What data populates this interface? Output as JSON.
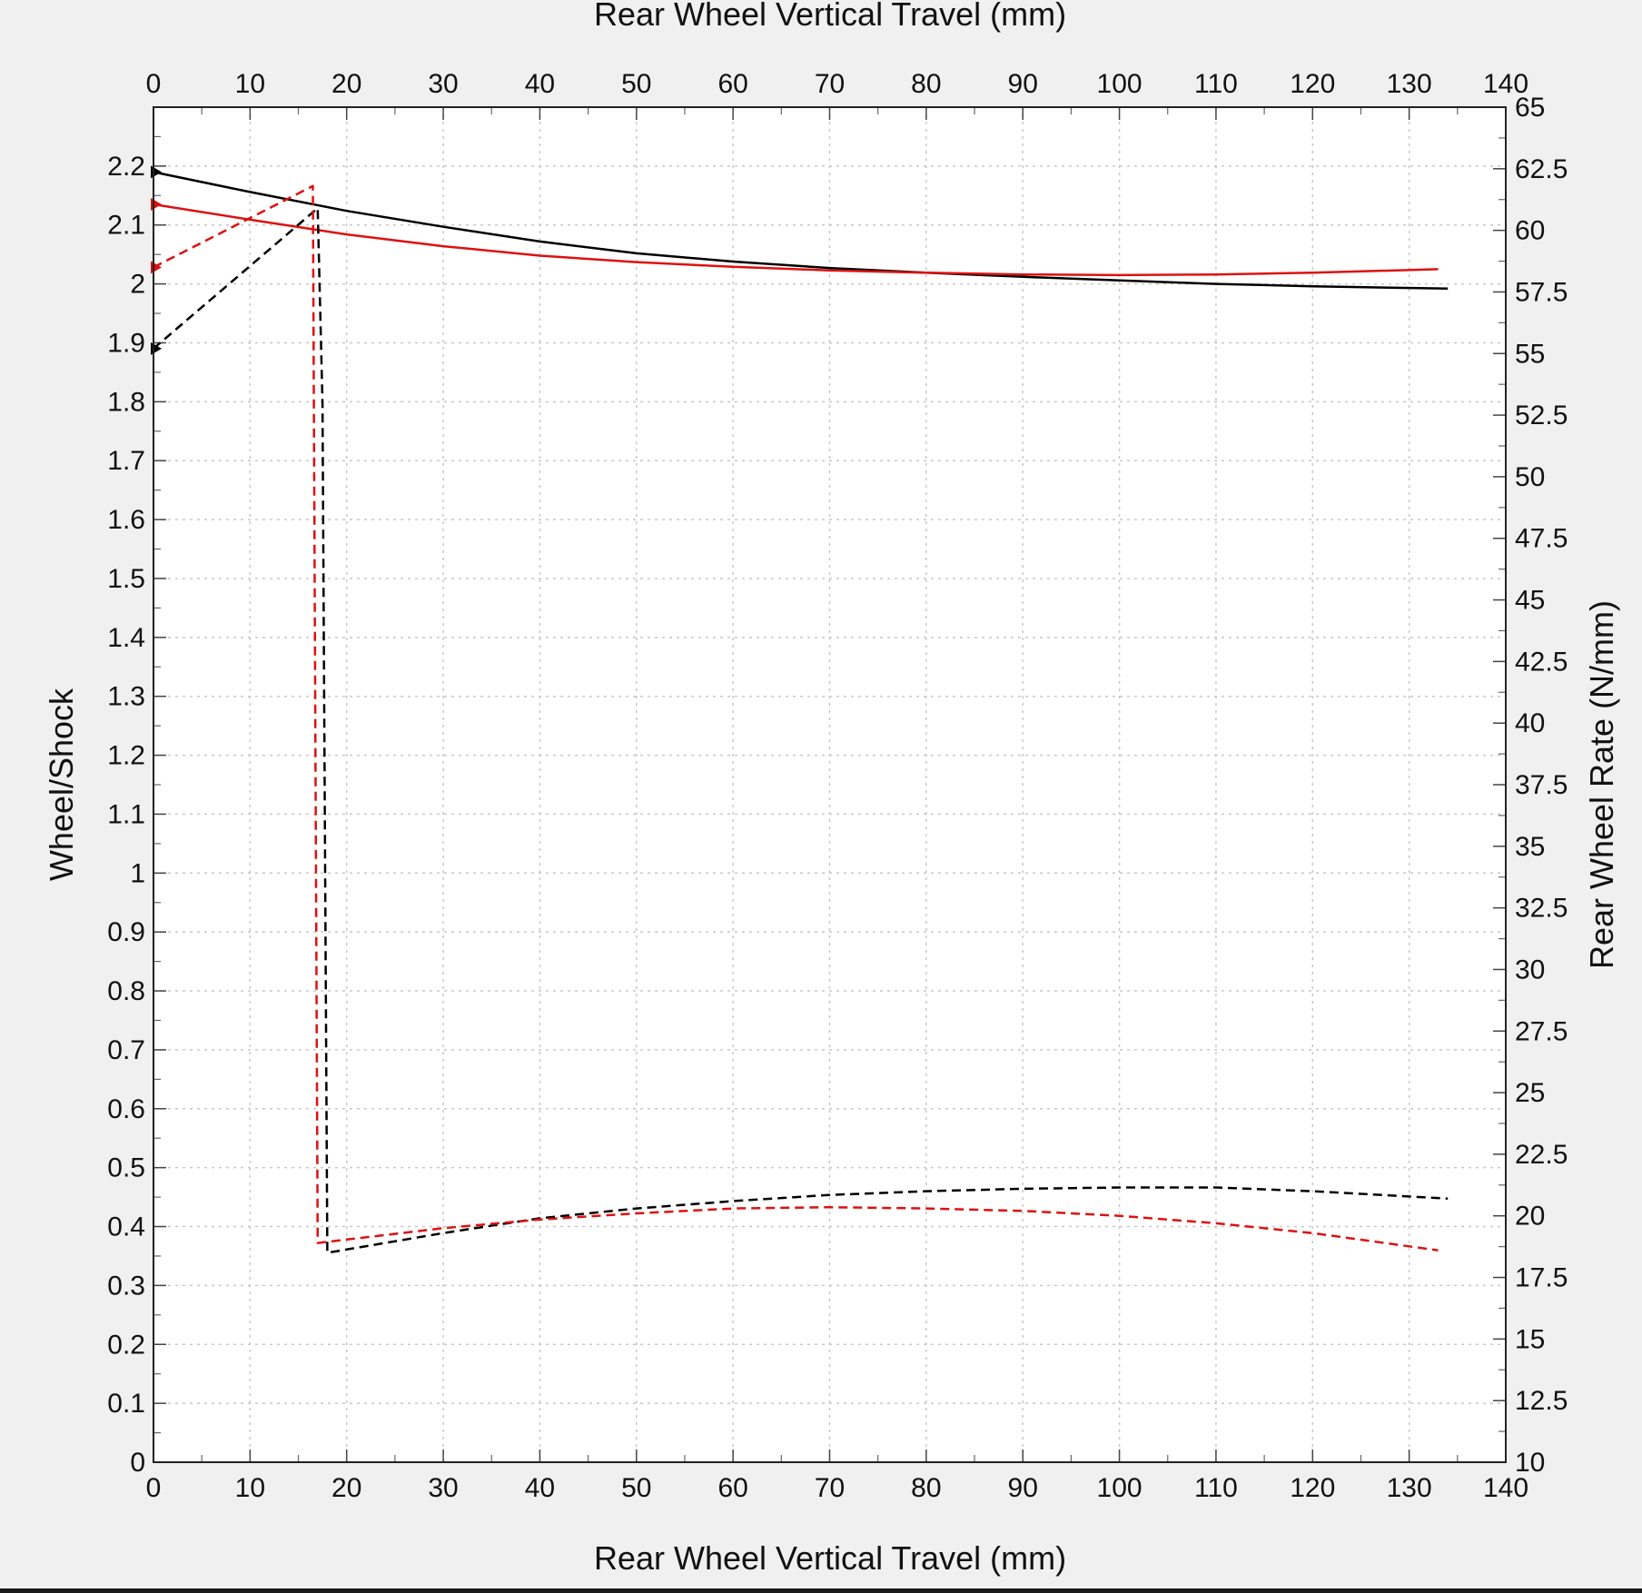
{
  "chart_data": {
    "type": "line",
    "title": "",
    "xlabel_top": "Rear Wheel Vertical Travel (mm)",
    "xlabel_bottom": "Rear Wheel Vertical Travel (mm)",
    "ylabel_left": "Wheel/Shock",
    "ylabel_right": "Rear Wheel Rate (N/mm)",
    "xlim": [
      0,
      140
    ],
    "ylim_left": [
      0,
      2.3
    ],
    "ylim_right": [
      10,
      65
    ],
    "x_ticks": [
      "0",
      "10",
      "20",
      "30",
      "40",
      "50",
      "60",
      "70",
      "80",
      "90",
      "100",
      "110",
      "120",
      "130",
      "140"
    ],
    "y_left_ticks": [
      "0",
      "0.1",
      "0.2",
      "0.3",
      "0.4",
      "0.5",
      "0.6",
      "0.7",
      "0.8",
      "0.9",
      "1",
      "1.1",
      "1.2",
      "1.3",
      "1.4",
      "1.5",
      "1.6",
      "1.7",
      "1.8",
      "1.9",
      "2",
      "2.1",
      "2.2"
    ],
    "y_right_ticks": [
      "10",
      "12.5",
      "15",
      "17.5",
      "20",
      "22.5",
      "25",
      "27.5",
      "30",
      "32.5",
      "35",
      "37.5",
      "40",
      "42.5",
      "45",
      "47.5",
      "50",
      "52.5",
      "55",
      "57.5",
      "60",
      "62.5",
      "65"
    ],
    "grid": true,
    "legend": "none",
    "series": [
      {
        "axis": "left",
        "color": "#000000",
        "style": "solid",
        "x": [
          0,
          10,
          20,
          30,
          40,
          50,
          60,
          70,
          80,
          90,
          100,
          110,
          120,
          134
        ],
        "y": [
          2.19,
          2.156,
          2.124,
          2.097,
          2.072,
          2.052,
          2.038,
          2.027,
          2.019,
          2.012,
          2.006,
          2.0,
          1.996,
          1.992
        ]
      },
      {
        "axis": "left",
        "color": "#dd1111",
        "style": "solid",
        "x": [
          0,
          10,
          20,
          30,
          40,
          50,
          60,
          70,
          80,
          90,
          100,
          110,
          120,
          133
        ],
        "y": [
          2.135,
          2.109,
          2.084,
          2.064,
          2.048,
          2.037,
          2.029,
          2.023,
          2.019,
          2.016,
          2.015,
          2.016,
          2.019,
          2.025
        ]
      },
      {
        "axis": "right",
        "color": "#000000",
        "style": "dashed",
        "x": [
          0,
          17,
          17.5,
          18,
          30,
          40,
          50,
          60,
          70,
          80,
          90,
          100,
          110,
          120,
          134
        ],
        "y": [
          55.2,
          60.9,
          53.0,
          18.5,
          19.3,
          19.9,
          20.3,
          20.6,
          20.85,
          21.0,
          21.1,
          21.15,
          21.15,
          21.0,
          20.7
        ]
      },
      {
        "axis": "right",
        "color": "#dd1111",
        "style": "dashed",
        "x": [
          0,
          16.5,
          17,
          30,
          40,
          50,
          60,
          70,
          80,
          90,
          100,
          110,
          120,
          133
        ],
        "y": [
          58.5,
          61.8,
          18.9,
          19.5,
          19.85,
          20.1,
          20.3,
          20.35,
          20.3,
          20.2,
          20.0,
          19.7,
          19.3,
          18.6
        ]
      }
    ],
    "markers": [
      {
        "axis": "left",
        "color": "#000000",
        "x": 0,
        "y": 2.19
      },
      {
        "axis": "left",
        "color": "#dd1111",
        "x": 0,
        "y": 2.135
      },
      {
        "axis": "right",
        "color": "#dd1111",
        "x": 0,
        "y": 58.5
      },
      {
        "axis": "right",
        "color": "#000000",
        "x": 0,
        "y": 55.2
      }
    ]
  }
}
